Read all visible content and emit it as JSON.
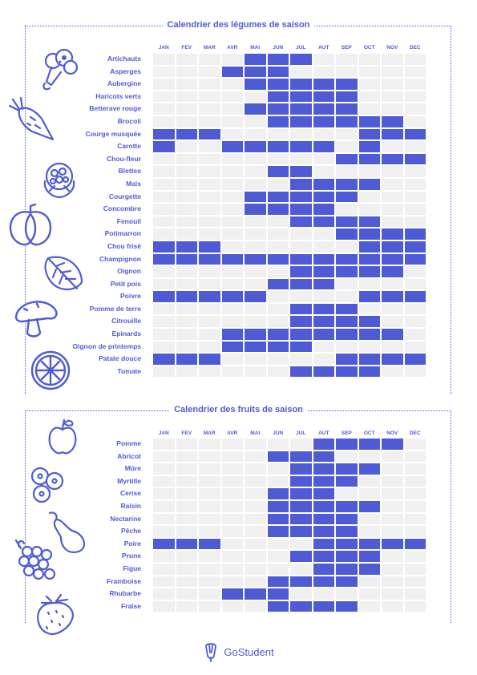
{
  "months": [
    "JAN",
    "FEV",
    "MAR",
    "AVR",
    "MAI",
    "JUN",
    "JUL",
    "AUT",
    "SEP",
    "OCT",
    "NOV",
    "DEC"
  ],
  "accent_color": "#4f5bd5",
  "empty_color": "#f0f0f0",
  "vegetables": {
    "title": "Calendrier des légumes de saison",
    "items": [
      {
        "name": "Artichauts",
        "months": [
          5,
          6,
          7
        ]
      },
      {
        "name": "Asperges",
        "months": [
          4,
          5,
          6
        ]
      },
      {
        "name": "Aubergine",
        "months": [
          5,
          6,
          7,
          8,
          9
        ]
      },
      {
        "name": "Haricots verts",
        "months": [
          6,
          7,
          8,
          9
        ]
      },
      {
        "name": "Betterave rouge",
        "months": [
          5,
          6,
          7,
          8,
          9
        ]
      },
      {
        "name": "Brocoli",
        "months": [
          6,
          7,
          8,
          9,
          10,
          11
        ]
      },
      {
        "name": "Courge musquée",
        "months": [
          1,
          2,
          3,
          10,
          11,
          12
        ]
      },
      {
        "name": "Carotte",
        "months": [
          1,
          4,
          5,
          6,
          7,
          8,
          10
        ]
      },
      {
        "name": "Chou-fleur",
        "months": [
          9,
          10,
          11,
          12
        ]
      },
      {
        "name": "Blettes",
        "months": [
          6,
          7
        ]
      },
      {
        "name": "Maïs",
        "months": [
          7,
          8,
          9,
          10
        ]
      },
      {
        "name": "Courgette",
        "months": [
          5,
          6,
          7,
          8,
          9
        ]
      },
      {
        "name": "Concombre",
        "months": [
          5,
          6,
          7,
          8
        ]
      },
      {
        "name": "Fenouil",
        "months": [
          7,
          8,
          9,
          10
        ]
      },
      {
        "name": "Potimarron",
        "months": [
          9,
          10,
          11,
          12
        ]
      },
      {
        "name": "Chou frisé",
        "months": [
          1,
          2,
          3,
          10,
          11,
          12
        ]
      },
      {
        "name": "Champignon",
        "months": [
          1,
          2,
          3,
          4,
          5,
          6,
          7,
          8,
          9,
          10,
          11,
          12
        ]
      },
      {
        "name": "Oignon",
        "months": [
          7,
          8,
          9,
          10,
          11
        ]
      },
      {
        "name": "Petit pois",
        "months": [
          6,
          7,
          8
        ]
      },
      {
        "name": "Poivre",
        "months": [
          1,
          2,
          3,
          4,
          5,
          10,
          11,
          12
        ]
      },
      {
        "name": "Pomme de terre",
        "months": [
          7,
          8,
          9
        ]
      },
      {
        "name": "Citrouille",
        "months": [
          7,
          8,
          9,
          10
        ]
      },
      {
        "name": "Epinards",
        "months": [
          4,
          5,
          6,
          7,
          8,
          9,
          10,
          11
        ]
      },
      {
        "name": "Oignon de printemps",
        "months": [
          4,
          5,
          6,
          7
        ]
      },
      {
        "name": "Patate douce",
        "months": [
          1,
          2,
          3,
          9,
          10,
          11,
          12
        ]
      },
      {
        "name": "Tomate",
        "months": [
          7,
          8,
          9,
          10
        ]
      }
    ]
  },
  "fruits": {
    "title": "Calendrier des fruits de saison",
    "items": [
      {
        "name": "Pomme",
        "months": [
          8,
          9,
          10,
          11
        ]
      },
      {
        "name": "Abricot",
        "months": [
          6,
          7,
          8
        ]
      },
      {
        "name": "Mûre",
        "months": [
          7,
          8,
          9,
          10
        ]
      },
      {
        "name": "Myrtille",
        "months": [
          7,
          8,
          9
        ]
      },
      {
        "name": "Cerise",
        "months": [
          6,
          7,
          8
        ]
      },
      {
        "name": "Raisin",
        "months": [
          6,
          7,
          8,
          9,
          10
        ]
      },
      {
        "name": "Nectarine",
        "months": [
          6,
          7,
          8,
          9
        ]
      },
      {
        "name": "Pêche",
        "months": [
          6,
          7,
          8,
          9
        ]
      },
      {
        "name": "Poire",
        "months": [
          1,
          2,
          3,
          8,
          9,
          10,
          11,
          12
        ]
      },
      {
        "name": "Prune",
        "months": [
          7,
          8,
          9,
          10
        ]
      },
      {
        "name": "Figue",
        "months": [
          8,
          9,
          10
        ]
      },
      {
        "name": "Framboise",
        "months": [
          6,
          7,
          8,
          9
        ]
      },
      {
        "name": "Rhubarbe",
        "months": [
          4,
          5,
          6
        ]
      },
      {
        "name": "Fraise",
        "months": [
          6,
          7,
          8,
          9
        ]
      }
    ]
  },
  "brand": {
    "name": "GoStudent",
    "icon": "gostudent-logo-icon"
  }
}
